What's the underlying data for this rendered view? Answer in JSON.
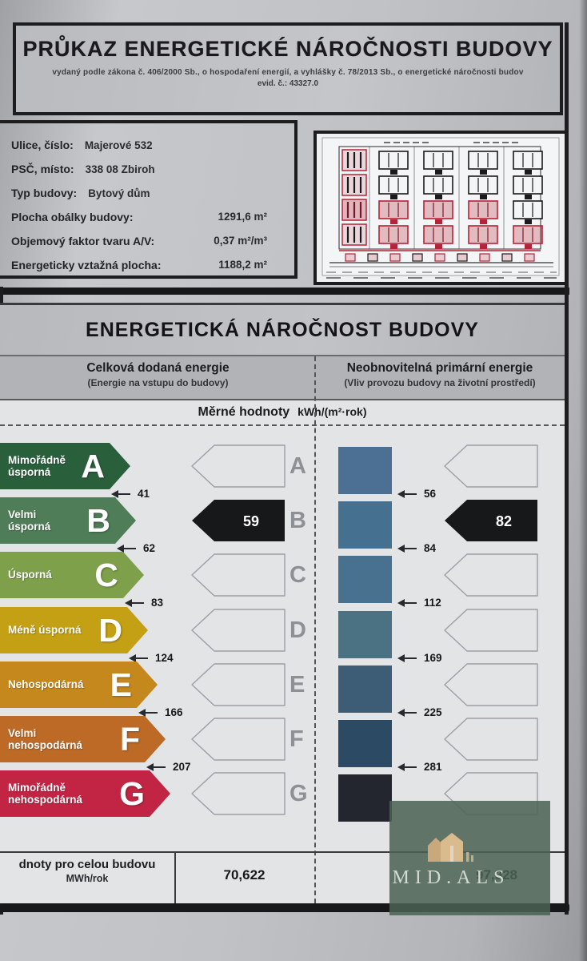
{
  "header": {
    "title": "PRŮKAZ ENERGETICKÉ NÁROČNOSTI BUDOVY",
    "subtitle_line1": "vydaný podle zákona č. 406/2000 Sb., o hospodaření energií, a vyhlášky č. 78/2013 Sb., o energetické náročnosti budov",
    "subtitle_line2": "evid. č.: 43327.0"
  },
  "building_info": {
    "rows": [
      {
        "label": "Ulice, číslo:",
        "value": "Majerové 532",
        "layout": "inline"
      },
      {
        "label": "PSČ, místo:",
        "value": "338 08 Zbiroh",
        "layout": "inline"
      },
      {
        "label": "Typ budovy:",
        "value": "Bytový dům",
        "layout": "inline"
      },
      {
        "label": "Plocha obálky budovy:",
        "value": "1291,6 m²",
        "layout": "right"
      },
      {
        "label": "Objemový faktor tvaru A/V:",
        "value": "0,37 m²/m³",
        "layout": "right"
      },
      {
        "label": "Energeticky vztažná plocha:",
        "value": "1188,2 m²",
        "layout": "right"
      }
    ]
  },
  "energy_section": {
    "title": "ENERGETICKÁ NÁROČNOST BUDOVY",
    "delivered_column_title": "Celková dodaná energie",
    "delivered_column_subtitle": "(Energie na vstupu do budovy)",
    "primary_column_title": "Neobnovitelná primární energie",
    "primary_column_subtitle": "(Vliv provozu budovy na životní prostředí)",
    "units_label": "Měrné hodnoty",
    "units": "kWh/(m²·rok)"
  },
  "chart_data": {
    "type": "energy-rating-scale",
    "units": "kWh/(m²·rok)",
    "classes": [
      {
        "letter": "A",
        "label": "Mimořádně úsporná",
        "label_lines": [
          "Mimořádně",
          "úsporná"
        ],
        "color": "#2a5f3c",
        "arrow_len": 163,
        "boundary_delivered": 41,
        "boundary_primary": 56,
        "bar_color": "#4c7094"
      },
      {
        "letter": "B",
        "label": "Velmi úsporná",
        "label_lines": [
          "Velmi",
          "úsporná"
        ],
        "color": "#4f7d58",
        "arrow_len": 170,
        "boundary_delivered": 62,
        "boundary_primary": 84,
        "bar_color": "#46708f"
      },
      {
        "letter": "C",
        "label": "Úsporná",
        "label_lines": [
          "Úsporná"
        ],
        "color": "#7fa04b",
        "arrow_len": 180,
        "boundary_delivered": 83,
        "boundary_primary": 112,
        "bar_color": "#47718f"
      },
      {
        "letter": "D",
        "label": "Méně úsporná",
        "label_lines": [
          "Méně úsporná"
        ],
        "color": "#c4a014",
        "arrow_len": 185,
        "boundary_delivered": 124,
        "boundary_primary": 169,
        "bar_color": "#4a7282"
      },
      {
        "letter": "E",
        "label": "Nehospodárná",
        "label_lines": [
          "Nehospodárná"
        ],
        "color": "#c5881d",
        "arrow_len": 197,
        "boundary_delivered": 166,
        "boundary_primary": 225,
        "bar_color": "#3d5c76"
      },
      {
        "letter": "F",
        "label": "Velmi nehospodárná",
        "label_lines": [
          "Velmi",
          "nehospodárná"
        ],
        "color": "#bd6a27",
        "arrow_len": 207,
        "boundary_delivered": 207,
        "boundary_primary": 281,
        "bar_color": "#2d4a64"
      },
      {
        "letter": "G",
        "label": "Mimořádně nehospodárná",
        "label_lines": [
          "Mimořádně",
          "nehospodárná"
        ],
        "color": "#c22544",
        "arrow_len": 213,
        "boundary_delivered": null,
        "boundary_primary": null,
        "bar_color": "#23262e"
      }
    ],
    "measured": {
      "delivered": {
        "class_letter": "B",
        "value": 59
      },
      "primary": {
        "class_letter": "B",
        "value": 82
      }
    }
  },
  "totals": {
    "label": "dnoty pro celou budovu",
    "unit": "MWh/rok",
    "delivered_value": "70,622",
    "primary_value": "97,928"
  },
  "watermark": {
    "text": "MID.ALS",
    "icon": "house-logo-icon",
    "background": "#4a6353",
    "icon_color": "#d7b98d"
  }
}
